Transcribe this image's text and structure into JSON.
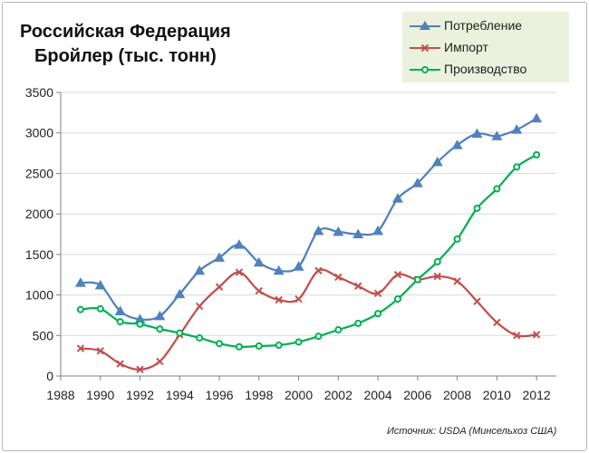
{
  "header": {
    "title_line1": "Российская Федерация",
    "title_line2": "Бройлер (тыс. тонн)"
  },
  "source_note": "Источник:  USDA (Минсельхоз США)",
  "chart_data": {
    "type": "line",
    "title": "Российская Федерация Бройлер (тыс. тонн)",
    "xlabel": "",
    "ylabel": "",
    "xlim": [
      1988,
      2013
    ],
    "ylim": [
      0,
      3500
    ],
    "x_ticks": [
      1988,
      1990,
      1992,
      1994,
      1996,
      1998,
      2000,
      2002,
      2004,
      2006,
      2008,
      2010,
      2012
    ],
    "y_ticks": [
      0,
      500,
      1000,
      1500,
      2000,
      2500,
      3000,
      3500
    ],
    "grid": "horizontal",
    "legend_position": "top-right",
    "x": [
      1989,
      1990,
      1991,
      1992,
      1993,
      1994,
      1995,
      1996,
      1997,
      1998,
      1999,
      2000,
      2001,
      2002,
      2003,
      2004,
      2005,
      2006,
      2007,
      2008,
      2009,
      2010,
      2011,
      2012
    ],
    "series": [
      {
        "name": "Потребление",
        "color": "#4f81bd",
        "marker": "triangle",
        "values": [
          1150,
          1120,
          800,
          700,
          740,
          1010,
          1300,
          1460,
          1620,
          1400,
          1300,
          1350,
          1790,
          1780,
          1750,
          1790,
          2190,
          2380,
          2640,
          2850,
          2990,
          2960,
          3040,
          3180
        ]
      },
      {
        "name": "Импорт",
        "color": "#c0504d",
        "marker": "x",
        "values": [
          340,
          310,
          150,
          80,
          180,
          510,
          860,
          1100,
          1280,
          1050,
          940,
          950,
          1300,
          1220,
          1110,
          1020,
          1250,
          1190,
          1230,
          1170,
          920,
          660,
          500,
          510
        ]
      },
      {
        "name": "Производство",
        "color": "#00b050",
        "marker": "circle",
        "values": [
          820,
          830,
          670,
          640,
          580,
          530,
          470,
          400,
          360,
          370,
          380,
          420,
          490,
          570,
          650,
          770,
          950,
          1190,
          1410,
          1690,
          2070,
          2310,
          2580,
          2730
        ]
      }
    ]
  }
}
